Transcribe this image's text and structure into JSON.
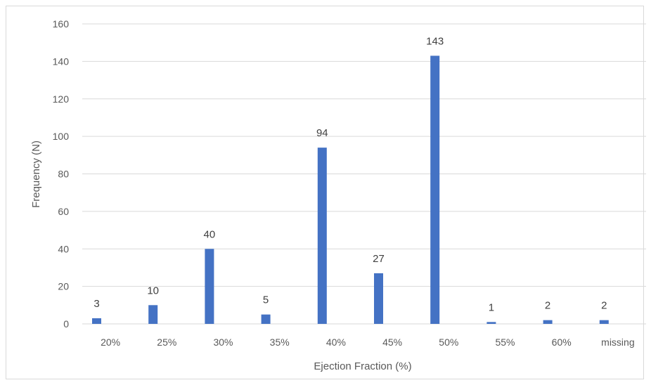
{
  "chart_data": {
    "type": "bar",
    "categories": [
      "20%",
      "25%",
      "30%",
      "35%",
      "40%",
      "45%",
      "50%",
      "55%",
      "60%",
      "missing"
    ],
    "values": [
      3,
      10,
      40,
      5,
      94,
      27,
      143,
      1,
      2,
      2
    ],
    "xlabel": "Ejection Fraction (%)",
    "ylabel": "Frequency (N)",
    "ylim": [
      0,
      160
    ],
    "yticks": [
      0,
      20,
      40,
      60,
      80,
      100,
      120,
      140,
      160
    ],
    "grid": true,
    "legend": "none",
    "bar_color": "#4472c4",
    "grid_color": "#d9d9d9"
  }
}
